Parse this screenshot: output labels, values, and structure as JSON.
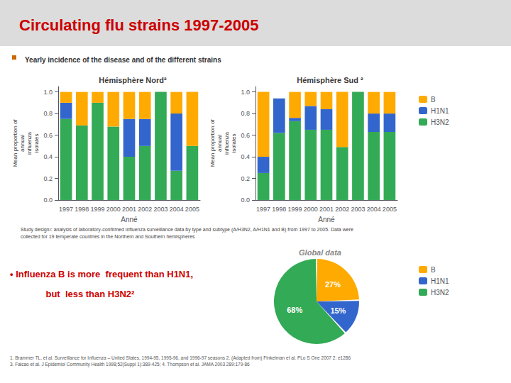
{
  "title": "Circulating flu strains 1997-2005",
  "subtitle": "Yearly incidence of the disease and of the different strains",
  "annotations": [
    "Study design²: analysis of laboratory-confirmed influenza surveillance data by type and subtype (A/H3N2, A/H1N1 and B) from 1997 to 2005. Data were\ncollected for 19 temperate countries in the Northern and Southern hemispheres",
    "• Influenza B is more  frequent than H1N1,",
    "    but  less than H3N2²",
    "1. Brammer TL, et al. Surveillance for Influenza – United States, 1994-95, 1995-96, and 1996-97 seasons 2. (Adapted from) Finkelman et al. PLo S One 2007 2: e1286\n3. Falcao et al. J Epidemiol Community Health 1998;52(Suppl 1):389-425; 4. Thompson et al. JAMA 2003 289:179-86"
  ],
  "chart_data": [
    {
      "type": "bar",
      "title": "Hémisphère Nord²",
      "x_label": "Anné",
      "y_label": "Mean proportion of\nannual\ninfluenza\nisolates",
      "categories": [
        "1997",
        "1998",
        "1999",
        "2000",
        "2001",
        "2002",
        "2003",
        "2004",
        "2005"
      ],
      "series": [
        {
          "name": "H3N2",
          "color": "#33aa55",
          "values": [
            0.75,
            0.69,
            0.9,
            0.68,
            0.4,
            0.5,
            1.0,
            0.27,
            0.5
          ]
        },
        {
          "name": "H1N1",
          "color": "#3366cc",
          "values": [
            0.15,
            0.0,
            0.0,
            0.0,
            0.35,
            0.25,
            0.0,
            0.53,
            0.0
          ]
        },
        {
          "name": "B",
          "color": "#ffaa00",
          "values": [
            0.1,
            0.31,
            0.1,
            0.32,
            0.25,
            0.25,
            0.0,
            0.2,
            0.5
          ]
        }
      ],
      "stacked": true,
      "ylim": [
        0,
        1.05
      ],
      "yticks": [
        {
          "value": 0.0,
          "label": "0.0"
        },
        {
          "value": 0.2,
          "label": "0.2"
        },
        {
          "value": 0.4,
          "label": "0.4"
        },
        {
          "value": 0.6,
          "label": "0.6"
        },
        {
          "value": 0.8,
          "label": "0.8"
        },
        {
          "value": 1.0,
          "label": "1.0"
        }
      ],
      "grid": false
    },
    {
      "type": "bar",
      "title": "Hémisphère Sud ²",
      "x_label": "Anné",
      "y_label": "Mean proportion of\nannual\ninfluenza\nisolates",
      "categories": [
        "1997",
        "1998",
        "1999",
        "2000",
        "2001",
        "2002",
        "2003",
        "2004",
        "2005"
      ],
      "series": [
        {
          "name": "H3N2",
          "color": "#33aa55",
          "values": [
            0.25,
            0.62,
            0.73,
            0.65,
            0.65,
            0.49,
            1.0,
            0.63,
            0.63
          ]
        },
        {
          "name": "H1N1",
          "color": "#3366cc",
          "values": [
            0.15,
            0.32,
            0.03,
            0.22,
            0.19,
            0.0,
            0.0,
            0.17,
            0.17
          ]
        },
        {
          "name": "B",
          "color": "#ffaa00",
          "values": [
            0.6,
            0.0,
            0.24,
            0.13,
            0.16,
            0.51,
            0.0,
            0.2,
            0.2
          ]
        }
      ],
      "stacked": true,
      "ylim": [
        0,
        1.05
      ],
      "yticks": [
        {
          "value": 0.0,
          "label": "0.0"
        },
        {
          "value": 0.2,
          "label": "0.2"
        },
        {
          "value": 0.4,
          "label": "0.4"
        },
        {
          "value": 0.6,
          "label": "0.6"
        },
        {
          "value": 0.8,
          "label": "0.8"
        },
        {
          "value": 1.0,
          "label": "1.0"
        }
      ],
      "grid": false,
      "legend": "right"
    },
    {
      "type": "pie",
      "title": "Global data",
      "categories": [
        "B",
        "H1N1",
        "H3N2"
      ],
      "values": [
        27,
        15,
        68
      ],
      "value_labels": [
        "27%",
        "15%",
        "68%"
      ],
      "colors": [
        "#ffaa00",
        "#3366cc",
        "#33aa55"
      ],
      "data_labels": true,
      "legend": "right"
    }
  ]
}
